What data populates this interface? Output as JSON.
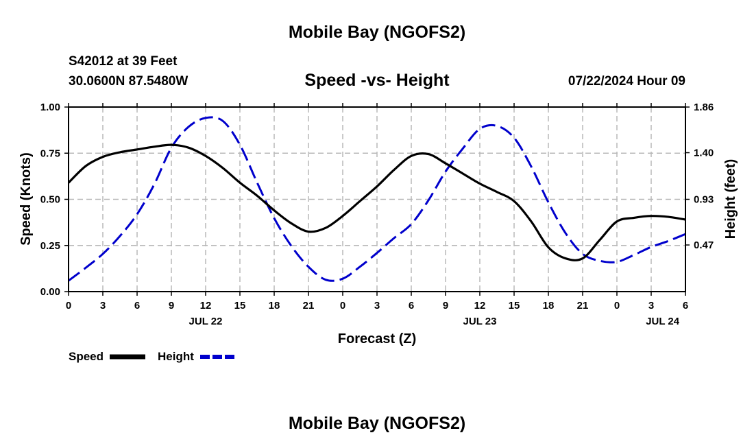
{
  "page": {
    "top_title": "Mobile Bay (NGOFS2)",
    "bottom_title": "Mobile Bay (NGOFS2)"
  },
  "chart_data": {
    "type": "line",
    "title": "Speed -vs- Height",
    "station": "S42012 at 39 Feet",
    "coordinates": "30.0600N  87.5480W",
    "date_label": "07/22/2024 Hour 09",
    "xlabel": "Forecast (Z)",
    "ylabel_left": "Speed (Knots)",
    "ylabel_right": "Height (feet)",
    "x_range_hours": [
      0,
      54
    ],
    "x_ticks": [
      {
        "h": 0,
        "label": "0"
      },
      {
        "h": 3,
        "label": "3"
      },
      {
        "h": 6,
        "label": "6"
      },
      {
        "h": 9,
        "label": "9"
      },
      {
        "h": 12,
        "label": "12"
      },
      {
        "h": 15,
        "label": "15"
      },
      {
        "h": 18,
        "label": "18"
      },
      {
        "h": 21,
        "label": "21"
      },
      {
        "h": 24,
        "label": "0"
      },
      {
        "h": 27,
        "label": "3"
      },
      {
        "h": 30,
        "label": "6"
      },
      {
        "h": 33,
        "label": "9"
      },
      {
        "h": 36,
        "label": "12"
      },
      {
        "h": 39,
        "label": "15"
      },
      {
        "h": 42,
        "label": "18"
      },
      {
        "h": 45,
        "label": "21"
      },
      {
        "h": 48,
        "label": "0"
      },
      {
        "h": 51,
        "label": "3"
      },
      {
        "h": 54,
        "label": "6"
      }
    ],
    "date_labels": [
      {
        "h": 12,
        "label": "JUL 22"
      },
      {
        "h": 36,
        "label": "JUL 23"
      },
      {
        "h": 52,
        "label": "JUL 24"
      }
    ],
    "ylim_left": [
      0,
      1.0
    ],
    "yticks_left": [
      {
        "v": 0,
        "label": "0.00"
      },
      {
        "v": 0.25,
        "label": "0.25"
      },
      {
        "v": 0.5,
        "label": "0.50"
      },
      {
        "v": 0.75,
        "label": "0.75"
      },
      {
        "v": 1.0,
        "label": "1.00"
      }
    ],
    "ylim_right": [
      0.0,
      1.86
    ],
    "yticks_right": [
      {
        "v": 0.47,
        "label": "0.47"
      },
      {
        "v": 0.93,
        "label": "0.93"
      },
      {
        "v": 1.4,
        "label": "1.40"
      },
      {
        "v": 1.86,
        "label": "1.86"
      }
    ],
    "grid": true,
    "legend_position": "bottom-left",
    "series": [
      {
        "name": "Speed",
        "axis": "left",
        "color": "#000000",
        "dash": "solid",
        "x": [
          0,
          1.5,
          3,
          4.5,
          6,
          7.5,
          9,
          10.5,
          12,
          13.5,
          15,
          16.5,
          18,
          19.5,
          21,
          22.5,
          24,
          25.5,
          27,
          28.5,
          30,
          31.5,
          33,
          34.5,
          36,
          37.5,
          39,
          40.5,
          42,
          43.5,
          45,
          46.5,
          48,
          49.5,
          51,
          52.5,
          54
        ],
        "values": [
          0.59,
          0.68,
          0.73,
          0.755,
          0.77,
          0.785,
          0.795,
          0.78,
          0.735,
          0.67,
          0.59,
          0.52,
          0.44,
          0.37,
          0.325,
          0.345,
          0.41,
          0.49,
          0.57,
          0.66,
          0.735,
          0.745,
          0.695,
          0.64,
          0.585,
          0.54,
          0.49,
          0.38,
          0.24,
          0.18,
          0.18,
          0.28,
          0.38,
          0.4,
          0.41,
          0.405,
          0.39
        ]
      },
      {
        "name": "Height",
        "axis": "right",
        "color": "#0000cc",
        "dash": "dashed",
        "x": [
          0,
          1.5,
          3,
          4.5,
          6,
          7.5,
          9,
          10.5,
          12,
          13.5,
          15,
          16.5,
          18,
          19.5,
          21,
          22.5,
          24,
          25.5,
          27,
          28.5,
          30,
          31.5,
          33,
          34.5,
          36,
          37.5,
          39,
          40.5,
          42,
          43.5,
          45,
          46.5,
          48,
          49.5,
          51,
          52.5,
          54
        ],
        "values": [
          0.11,
          0.24,
          0.38,
          0.56,
          0.78,
          1.08,
          1.45,
          1.66,
          1.75,
          1.72,
          1.48,
          1.1,
          0.74,
          0.46,
          0.25,
          0.12,
          0.13,
          0.25,
          0.39,
          0.54,
          0.68,
          0.92,
          1.21,
          1.44,
          1.64,
          1.67,
          1.55,
          1.26,
          0.9,
          0.59,
          0.38,
          0.31,
          0.3,
          0.37,
          0.45,
          0.51,
          0.58
        ]
      }
    ]
  }
}
